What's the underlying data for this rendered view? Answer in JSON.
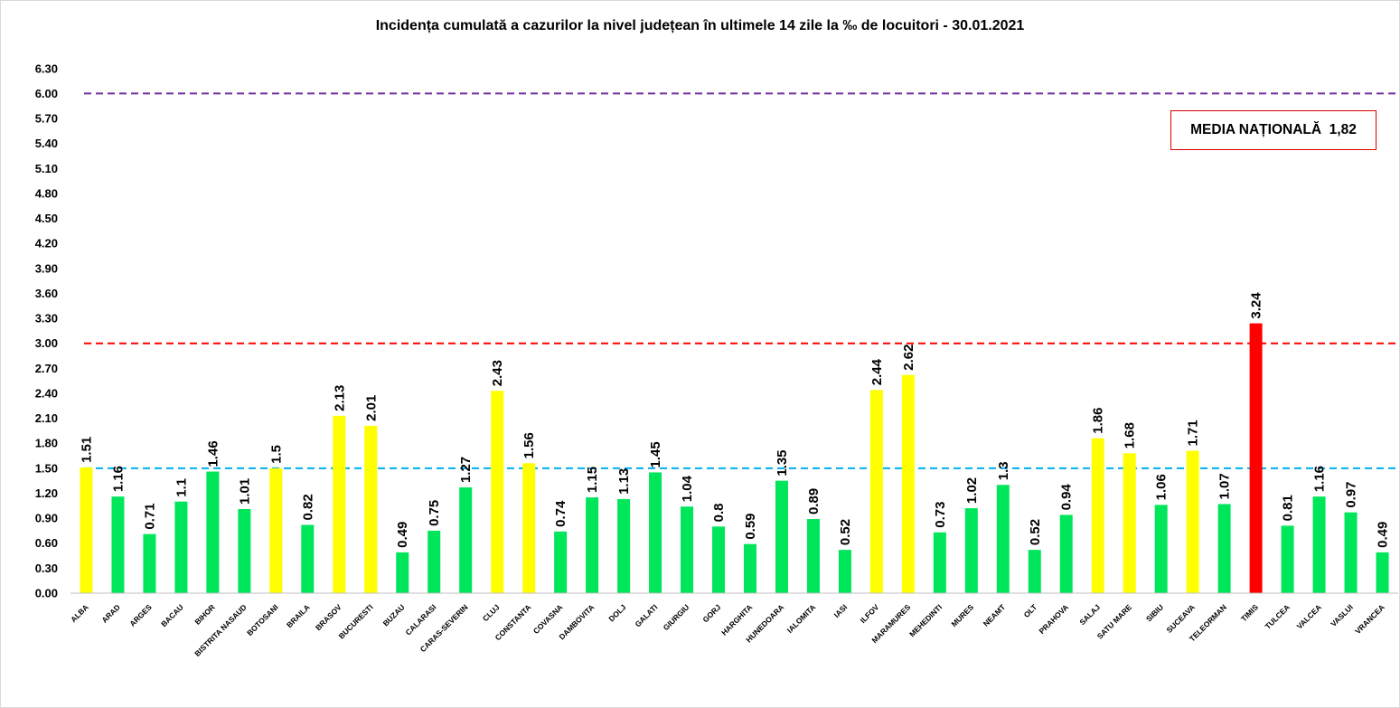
{
  "chart_data": {
    "type": "bar",
    "title": "Incidența cumulată a cazurilor la nivel județean în ultimele 14 zile la ‰ de locuitori - 30.01.2021",
    "annotation": "MEDIA NAȚIONALĂ  1,82",
    "xlabel": "",
    "ylabel": "",
    "ylim": [
      0,
      6.3
    ],
    "yticks": [
      "0.00",
      "0.30",
      "0.60",
      "0.90",
      "1.20",
      "1.50",
      "1.80",
      "2.10",
      "2.40",
      "2.70",
      "3.00",
      "3.30",
      "3.60",
      "3.90",
      "4.20",
      "4.50",
      "4.80",
      "5.10",
      "5.40",
      "5.70",
      "6.00",
      "6.30"
    ],
    "grid": false,
    "legend": "none",
    "categories": [
      "ALBA",
      "ARAD",
      "ARGES",
      "BACAU",
      "BIHOR",
      "BISTRITA NASAUD",
      "BOTOSANI",
      "BRAILA",
      "BRASOV",
      "BUCURESTI",
      "BUZAU",
      "CALARASI",
      "CARAS-SEVERIN",
      "CLUJ",
      "CONSTANTA",
      "COVASNA",
      "DAMBOVITA",
      "DOLJ",
      "GALATI",
      "GIURGIU",
      "GORJ",
      "HARGHITA",
      "HUNEDOARA",
      "IALOMITA",
      "IASI",
      "ILFOV",
      "MARAMURES",
      "MEHEDINTI",
      "MURES",
      "NEAMT",
      "OLT",
      "PRAHOVA",
      "SALAJ",
      "SATU MARE",
      "SIBIU",
      "SUCEAVA",
      "TELEORMAN",
      "TIMIS",
      "TULCEA",
      "VALCEA",
      "VASLUI",
      "VRANCEA"
    ],
    "values": [
      1.51,
      1.16,
      0.71,
      1.1,
      1.46,
      1.01,
      1.5,
      0.82,
      2.13,
      2.01,
      0.49,
      0.75,
      1.27,
      2.43,
      1.56,
      0.74,
      1.15,
      1.13,
      1.45,
      1.04,
      0.8,
      0.59,
      1.35,
      0.89,
      0.52,
      2.44,
      2.62,
      0.73,
      1.02,
      1.3,
      0.52,
      0.94,
      1.86,
      1.68,
      1.06,
      1.71,
      1.07,
      3.24,
      0.81,
      1.16,
      0.97,
      0.49
    ],
    "value_labels": [
      "1.51",
      "1.16",
      "0.71",
      "1.1",
      "1.46",
      "1.01",
      "1.5",
      "0.82",
      "2.13",
      "2.01",
      "0.49",
      "0.75",
      "1.27",
      "2.43",
      "1.56",
      "0.74",
      "1.15",
      "1.13",
      "1.45",
      "1.04",
      "0.8",
      "0.59",
      "1.35",
      "0.89",
      "0.52",
      "2.44",
      "2.62",
      "0.73",
      "1.02",
      "1.3",
      "0.52",
      "0.94",
      "1.86",
      "1.68",
      "1.06",
      "1.71",
      "1.07",
      "3.24",
      "0.81",
      "1.16",
      "0.97",
      "0.49"
    ],
    "bar_colors": [
      "yellow",
      "green",
      "green",
      "green",
      "green",
      "green",
      "yellow",
      "green",
      "yellow",
      "yellow",
      "green",
      "green",
      "green",
      "yellow",
      "yellow",
      "green",
      "green",
      "green",
      "green",
      "green",
      "green",
      "green",
      "green",
      "green",
      "green",
      "yellow",
      "yellow",
      "green",
      "green",
      "green",
      "green",
      "green",
      "yellow",
      "yellow",
      "green",
      "yellow",
      "green",
      "red",
      "green",
      "green",
      "green",
      "green"
    ],
    "colors": {
      "green": "#00e65b",
      "yellow": "#ffff00",
      "red": "#ff0000"
    },
    "reference_lines": [
      {
        "value": 6.0,
        "color": "#7030a0"
      },
      {
        "value": 3.0,
        "color": "#ff0000"
      },
      {
        "value": 1.5,
        "color": "#00b0f0"
      }
    ]
  }
}
